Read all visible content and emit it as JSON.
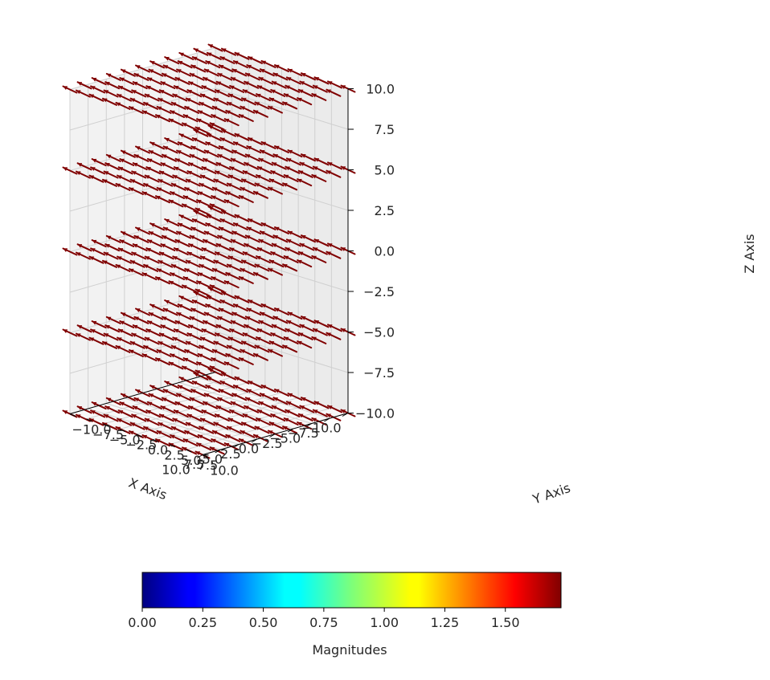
{
  "chart_data": {
    "type": "quiver3d",
    "title": "",
    "axes": {
      "x": {
        "label": "X Axis",
        "ticks": [
          "10.0",
          "7.5",
          "5.0",
          "2.5",
          "0.0",
          "−2.5",
          "−5.0",
          "−7.5",
          "−10.0"
        ],
        "range": [
          -10,
          10
        ]
      },
      "y": {
        "label": "Y Axis",
        "ticks": [
          "10.0",
          "7.5",
          "5.0",
          "2.5",
          "0.0",
          "−2.5",
          "−5.0",
          "−7.5",
          "−10.0"
        ],
        "range": [
          -10,
          10
        ]
      },
      "z": {
        "label": "Z Axis",
        "ticks": [
          "10.0",
          "7.5",
          "5.0",
          "2.5",
          "0.0",
          "−2.5",
          "−5.0",
          "−7.5",
          "−10.0"
        ],
        "range": [
          -10,
          10
        ]
      }
    },
    "grid": true,
    "vector_field": {
      "x_values": [
        -10,
        -8,
        -6,
        -4,
        -2,
        0,
        2,
        4,
        6,
        8,
        10
      ],
      "y_values": [
        -10,
        -8,
        -6,
        -4,
        -2,
        0,
        2,
        4,
        6,
        8,
        10
      ],
      "z_values": [
        -10,
        -5,
        0,
        5,
        10
      ],
      "color": "#800000"
    },
    "colorbar": {
      "label": "Magnitudes",
      "orientation": "horizontal",
      "colormap": "jet",
      "min": 0.0,
      "max": 1.73,
      "ticks": [
        "0.00",
        "0.25",
        "0.50",
        "0.75",
        "1.00",
        "1.25",
        "1.50"
      ]
    }
  }
}
